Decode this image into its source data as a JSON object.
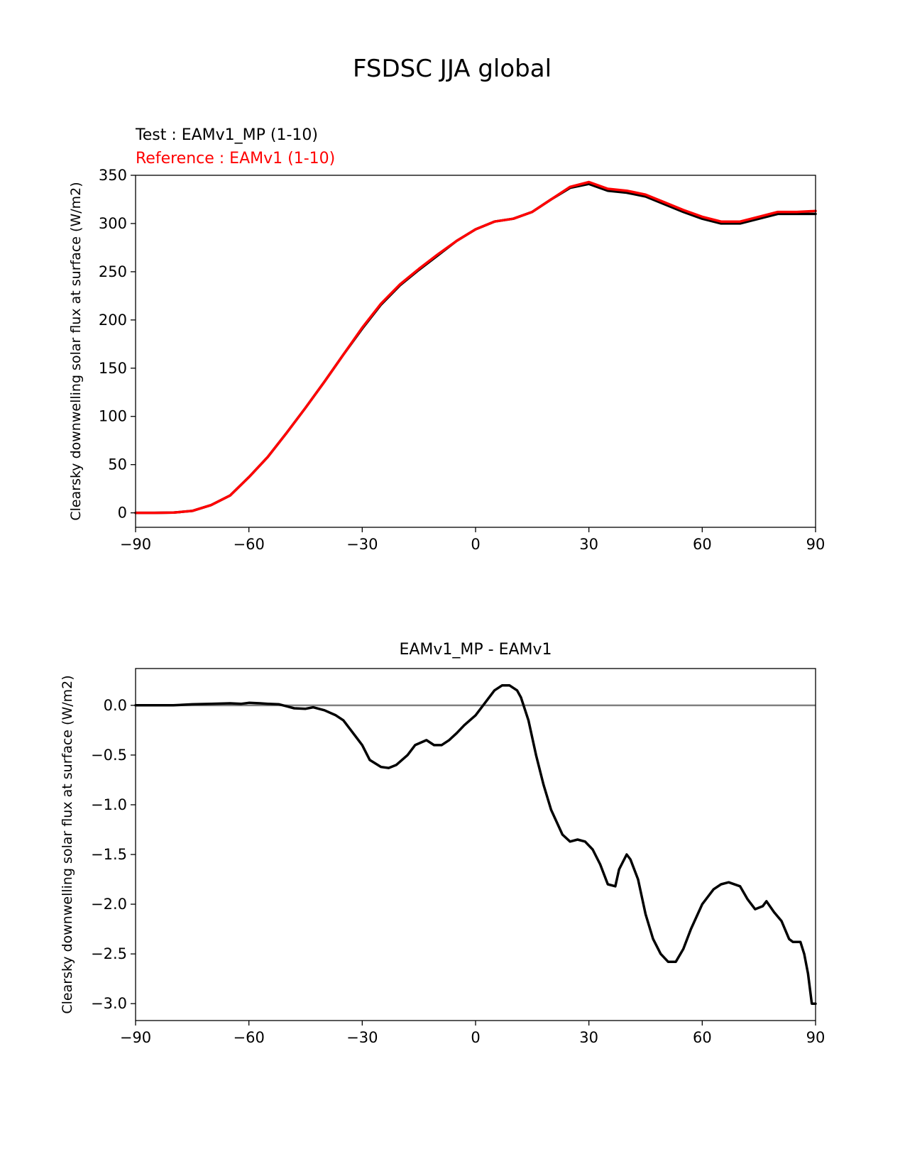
{
  "figure": {
    "suptitle": "FSDSC JJA global"
  },
  "chart_data": [
    {
      "type": "line",
      "legend": {
        "test": "Test : EAMv1_MP (1-10)",
        "reference": "Reference : EAMv1 (1-10)",
        "placement": "top-left, above plot"
      },
      "xlabel": "",
      "ylabel": "Clearsky downwelling solar flux at surface (W/m2)",
      "xlim": [
        -90,
        90
      ],
      "ylim": [
        -15,
        350
      ],
      "xticks": [
        -90,
        -60,
        -30,
        0,
        30,
        60,
        90
      ],
      "xtick_labels": [
        "−90",
        "−60",
        "−30",
        "0",
        "30",
        "60",
        "90"
      ],
      "yticks": [
        0,
        50,
        100,
        150,
        200,
        250,
        300,
        350
      ],
      "ytick_labels": [
        "0",
        "50",
        "100",
        "150",
        "200",
        "250",
        "300",
        "350"
      ],
      "grid": false,
      "x": [
        -90,
        -85,
        -80,
        -75,
        -70,
        -65,
        -60,
        -55,
        -50,
        -45,
        -40,
        -35,
        -30,
        -25,
        -20,
        -15,
        -10,
        -5,
        0,
        5,
        10,
        15,
        20,
        25,
        30,
        35,
        40,
        45,
        50,
        55,
        60,
        65,
        70,
        75,
        80,
        85,
        90
      ],
      "series": [
        {
          "name": "Test : EAMv1_MP (1-10)",
          "color": "#000000",
          "values": [
            0,
            0,
            0.2,
            2,
            8,
            18,
            37,
            58,
            83,
            109,
            136,
            164,
            191,
            216,
            236,
            252,
            267,
            282,
            294,
            302,
            305,
            312,
            325,
            337,
            341,
            334,
            332,
            328,
            320,
            312,
            305,
            300,
            300,
            305,
            310,
            310,
            310
          ]
        },
        {
          "name": "Reference : EAMv1 (1-10)",
          "color": "#ff0000",
          "values": [
            0,
            0,
            0.2,
            2,
            8,
            18,
            37,
            58,
            83,
            109,
            136,
            164,
            192,
            217,
            237,
            253,
            268,
            282,
            294,
            302,
            305,
            312,
            325,
            338,
            343,
            336,
            334,
            330,
            322,
            314,
            307,
            302,
            302,
            307,
            312,
            312,
            313
          ]
        }
      ]
    },
    {
      "type": "line",
      "title": "EAMv1_MP - EAMv1",
      "xlabel": "",
      "ylabel": "Clearsky downwelling solar flux at surface (W/m2)",
      "xlim": [
        -90,
        90
      ],
      "ylim": [
        -3.17,
        0.37
      ],
      "xticks": [
        -90,
        -60,
        -30,
        0,
        30,
        60,
        90
      ],
      "xtick_labels": [
        "−90",
        "−60",
        "−30",
        "0",
        "30",
        "60",
        "90"
      ],
      "yticks": [
        0.0,
        -0.5,
        -1.0,
        -1.5,
        -2.0,
        -2.5,
        -3.0
      ],
      "ytick_labels": [
        "0.0",
        "−0.5",
        "−1.0",
        "−1.5",
        "−2.0",
        "−2.5",
        "−3.0"
      ],
      "grid": false,
      "zero_line": {
        "y": 0,
        "color": "#808080"
      },
      "x": [
        -90,
        -85,
        -80,
        -75,
        -70,
        -65,
        -62,
        -60,
        -57,
        -55,
        -52,
        -50,
        -48,
        -45,
        -43,
        -40,
        -37,
        -35,
        -33,
        -30,
        -28,
        -25,
        -23,
        -21,
        -18,
        -16,
        -13,
        -11,
        -9,
        -7,
        -5,
        -3,
        0,
        3,
        5,
        7,
        9,
        11,
        12,
        14,
        16,
        18,
        20,
        23,
        25,
        27,
        29,
        31,
        33,
        35,
        37,
        38,
        40,
        41,
        43,
        45,
        47,
        49,
        51,
        53,
        55,
        57,
        60,
        63,
        65,
        67,
        70,
        72,
        74,
        76,
        77,
        79,
        81,
        83,
        84,
        86,
        87,
        88,
        89,
        90
      ],
      "series": [
        {
          "name": "EAMv1_MP - EAMv1",
          "color": "#000000",
          "values": [
            0.0,
            0.0,
            0.0,
            0.01,
            0.015,
            0.02,
            0.015,
            0.025,
            0.02,
            0.015,
            0.01,
            -0.01,
            -0.03,
            -0.035,
            -0.02,
            -0.05,
            -0.1,
            -0.15,
            -0.25,
            -0.4,
            -0.55,
            -0.62,
            -0.63,
            -0.6,
            -0.5,
            -0.4,
            -0.35,
            -0.4,
            -0.4,
            -0.35,
            -0.28,
            -0.2,
            -0.1,
            0.05,
            0.15,
            0.2,
            0.2,
            0.15,
            0.08,
            -0.15,
            -0.5,
            -0.8,
            -1.05,
            -1.3,
            -1.37,
            -1.35,
            -1.37,
            -1.45,
            -1.6,
            -1.8,
            -1.82,
            -1.65,
            -1.5,
            -1.55,
            -1.75,
            -2.1,
            -2.35,
            -2.5,
            -2.58,
            -2.58,
            -2.45,
            -2.25,
            -2.0,
            -1.85,
            -1.8,
            -1.78,
            -1.82,
            -1.95,
            -2.05,
            -2.02,
            -1.97,
            -2.08,
            -2.17,
            -2.35,
            -2.38,
            -2.38,
            -2.5,
            -2.7,
            -3.0,
            -3.0
          ]
        }
      ]
    }
  ]
}
